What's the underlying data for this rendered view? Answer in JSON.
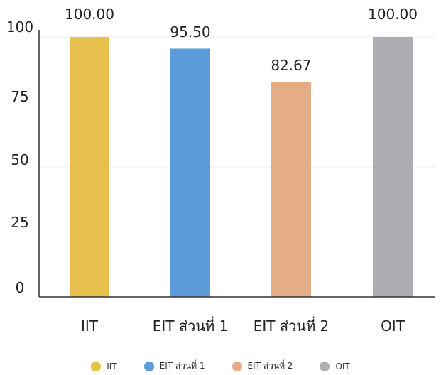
{
  "chart_data": {
    "type": "bar",
    "categories": [
      "IIT",
      "EIT ส่วนที่ 1",
      "EIT ส่วนที่ 2",
      "OIT"
    ],
    "values": [
      100.0,
      95.5,
      82.67,
      100.0
    ],
    "value_labels": [
      "100.00",
      "95.50",
      "82.67",
      "100.00"
    ],
    "colors": [
      "#E8C04E",
      "#5C9BD8",
      "#E5AD86",
      "#ADADB2"
    ],
    "yticks": [
      "0",
      "25",
      "50",
      "75",
      "100"
    ],
    "ylim": [
      0,
      100
    ],
    "grid": true,
    "legend_placement": "bottom",
    "legend": [
      "IIT",
      "EIT ส่วนที่ 1",
      "EIT ส่วนที่ 2",
      "OIT"
    ]
  }
}
